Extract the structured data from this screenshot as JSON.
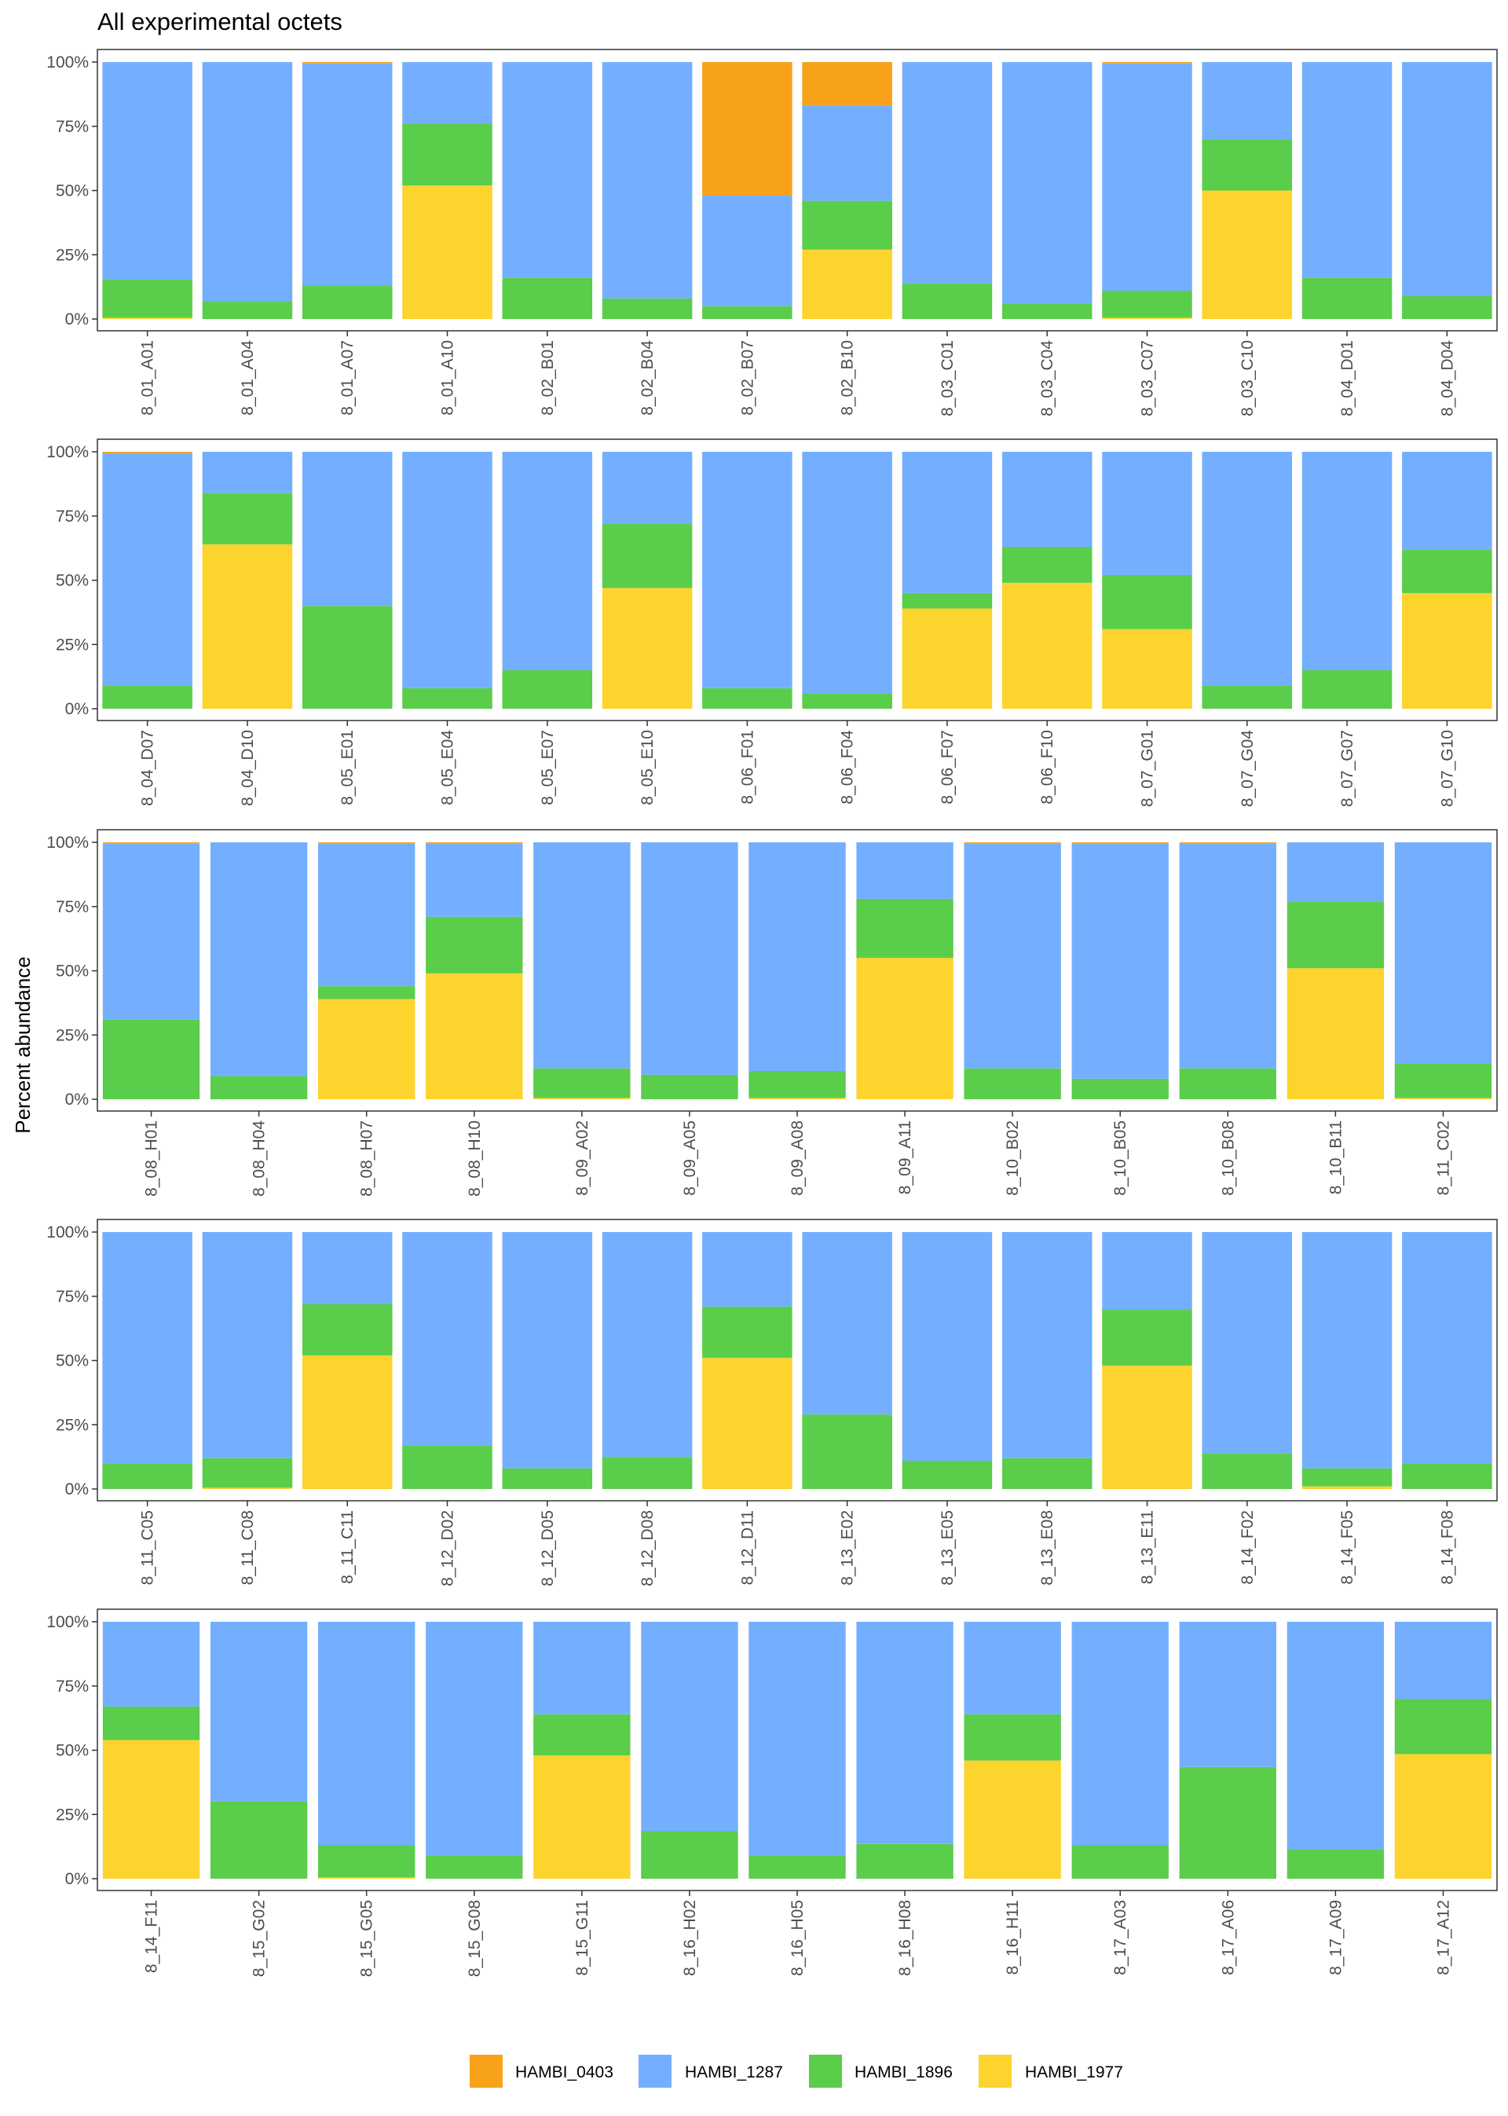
{
  "title": "All experimental octets",
  "ylabel": "Percent abundance",
  "legend": [
    {
      "name": "HAMBI_0403",
      "color": "#F8A21A"
    },
    {
      "name": "HAMBI_1287",
      "color": "#74AFFF"
    },
    {
      "name": "HAMBI_1896",
      "color": "#5ACD4B"
    },
    {
      "name": "HAMBI_1977",
      "color": "#FDD32E"
    }
  ],
  "chart_data": {
    "type": "bar",
    "stacked": true,
    "title": "All experimental octets",
    "ylabel": "Percent abundance",
    "ylim": [
      0,
      1
    ],
    "yticks": [
      "0%",
      "25%",
      "50%",
      "75%",
      "100%"
    ],
    "grid": false,
    "legend_position": "bottom",
    "series_names": [
      "HAMBI_1977",
      "HAMBI_1896",
      "HAMBI_1287",
      "HAMBI_0403"
    ],
    "colors": {
      "HAMBI_0403": "#F8A21A",
      "HAMBI_1287": "#74AFFF",
      "HAMBI_1896": "#5ACD4B",
      "HAMBI_1977": "#FDD32E"
    },
    "panels": [
      {
        "categories": [
          "8_01_A01",
          "8_01_A04",
          "8_01_A07",
          "8_01_A10",
          "8_02_B01",
          "8_02_B04",
          "8_02_B07",
          "8_02_B10",
          "8_03_C01",
          "8_03_C04",
          "8_03_C07",
          "8_03_C10",
          "8_04_D01",
          "8_04_D04"
        ],
        "series": [
          {
            "name": "HAMBI_1977",
            "values": [
              0.005,
              0,
              0,
              0.52,
              0,
              0,
              0,
              0.27,
              0,
              0,
              0.005,
              0.5,
              0,
              0
            ]
          },
          {
            "name": "HAMBI_1896",
            "values": [
              0.15,
              0.07,
              0.13,
              0.24,
              0.16,
              0.08,
              0.05,
              0.19,
              0.14,
              0.06,
              0.105,
              0.2,
              0.16,
              0.09
            ]
          },
          {
            "name": "HAMBI_1287",
            "values": [
              0.845,
              0.93,
              0.865,
              0.24,
              0.84,
              0.92,
              0.43,
              0.37,
              0.86,
              0.94,
              0.885,
              0.3,
              0.84,
              0.91
            ]
          },
          {
            "name": "HAMBI_0403",
            "values": [
              0,
              0,
              0.005,
              0,
              0,
              0,
              0.52,
              0.17,
              0,
              0,
              0.005,
              0,
              0,
              0
            ]
          }
        ]
      },
      {
        "categories": [
          "8_04_D07",
          "8_04_D10",
          "8_05_E01",
          "8_05_E04",
          "8_05_E07",
          "8_05_E10",
          "8_06_F01",
          "8_06_F04",
          "8_06_F07",
          "8_06_F10",
          "8_07_G01",
          "8_07_G04",
          "8_07_G07",
          "8_07_G10"
        ],
        "series": [
          {
            "name": "HAMBI_1977",
            "values": [
              0,
              0.64,
              0,
              0,
              0,
              0.47,
              0,
              0,
              0.39,
              0.49,
              0.31,
              0,
              0,
              0.45
            ]
          },
          {
            "name": "HAMBI_1896",
            "values": [
              0.09,
              0.2,
              0.4,
              0.08,
              0.15,
              0.25,
              0.08,
              0.06,
              0.06,
              0.14,
              0.21,
              0.09,
              0.15,
              0.17
            ]
          },
          {
            "name": "HAMBI_1287",
            "values": [
              0.905,
              0.16,
              0.6,
              0.92,
              0.85,
              0.28,
              0.92,
              0.94,
              0.55,
              0.37,
              0.48,
              0.91,
              0.85,
              0.38
            ]
          },
          {
            "name": "HAMBI_0403",
            "values": [
              0.005,
              0,
              0,
              0,
              0,
              0,
              0,
              0,
              0,
              0,
              0,
              0,
              0,
              0
            ]
          }
        ]
      },
      {
        "categories": [
          "8_08_H01",
          "8_08_H04",
          "8_08_H07",
          "8_08_H10",
          "8_09_A02",
          "8_09_A05",
          "8_09_A08",
          "8_09_A11",
          "8_10_B02",
          "8_10_B05",
          "8_10_B08",
          "8_10_B11",
          "8_11_C02"
        ],
        "series": [
          {
            "name": "HAMBI_1977",
            "values": [
              0,
              0,
              0.39,
              0.49,
              0.005,
              0,
              0.005,
              0.55,
              0,
              0,
              0,
              0.51,
              0.005
            ]
          },
          {
            "name": "HAMBI_1896",
            "values": [
              0.31,
              0.09,
              0.05,
              0.22,
              0.115,
              0.095,
              0.105,
              0.23,
              0.12,
              0.08,
              0.12,
              0.26,
              0.135
            ]
          },
          {
            "name": "HAMBI_1287",
            "values": [
              0.685,
              0.91,
              0.555,
              0.285,
              0.88,
              0.905,
              0.89,
              0.22,
              0.875,
              0.915,
              0.875,
              0.23,
              0.86
            ]
          },
          {
            "name": "HAMBI_0403",
            "values": [
              0.005,
              0,
              0.005,
              0.005,
              0,
              0,
              0,
              0,
              0.005,
              0.005,
              0.005,
              0,
              0
            ]
          }
        ]
      },
      {
        "categories": [
          "8_11_C05",
          "8_11_C08",
          "8_11_C11",
          "8_12_D02",
          "8_12_D05",
          "8_12_D08",
          "8_12_D11",
          "8_13_E02",
          "8_13_E05",
          "8_13_E08",
          "8_13_E11",
          "8_14_F02",
          "8_14_F05",
          "8_14_F08"
        ],
        "series": [
          {
            "name": "HAMBI_1977",
            "values": [
              0,
              0.005,
              0.52,
              0,
              0,
              0,
              0.51,
              0,
              0,
              0,
              0.48,
              0,
              0.01,
              0
            ]
          },
          {
            "name": "HAMBI_1896",
            "values": [
              0.1,
              0.115,
              0.2,
              0.17,
              0.08,
              0.125,
              0.2,
              0.29,
              0.11,
              0.12,
              0.22,
              0.14,
              0.07,
              0.1
            ]
          },
          {
            "name": "HAMBI_1287",
            "values": [
              0.9,
              0.88,
              0.28,
              0.83,
              0.92,
              0.875,
              0.29,
              0.71,
              0.89,
              0.88,
              0.3,
              0.86,
              0.92,
              0.9
            ]
          },
          {
            "name": "HAMBI_0403",
            "values": [
              0,
              0,
              0,
              0,
              0,
              0,
              0,
              0,
              0,
              0,
              0,
              0,
              0,
              0
            ]
          }
        ]
      },
      {
        "categories": [
          "8_14_F11",
          "8_15_G02",
          "8_15_G05",
          "8_15_G08",
          "8_15_G11",
          "8_16_H02",
          "8_16_H05",
          "8_16_H08",
          "8_16_H11",
          "8_17_A03",
          "8_17_A06",
          "8_17_A09",
          "8_17_A12"
        ],
        "series": [
          {
            "name": "HAMBI_1977",
            "values": [
              0.54,
              0,
              0.005,
              0,
              0.48,
              0,
              0,
              0,
              0.46,
              0,
              0,
              0,
              0.485
            ]
          },
          {
            "name": "HAMBI_1896",
            "values": [
              0.13,
              0.3,
              0.125,
              0.09,
              0.16,
              0.185,
              0.09,
              0.135,
              0.18,
              0.13,
              0.435,
              0.115,
              0.215
            ]
          },
          {
            "name": "HAMBI_1287",
            "values": [
              0.33,
              0.7,
              0.87,
              0.91,
              0.36,
              0.815,
              0.91,
              0.865,
              0.36,
              0.87,
              0.565,
              0.885,
              0.3
            ]
          },
          {
            "name": "HAMBI_0403",
            "values": [
              0,
              0,
              0,
              0,
              0,
              0,
              0,
              0,
              0,
              0,
              0,
              0,
              0
            ]
          }
        ]
      }
    ]
  }
}
